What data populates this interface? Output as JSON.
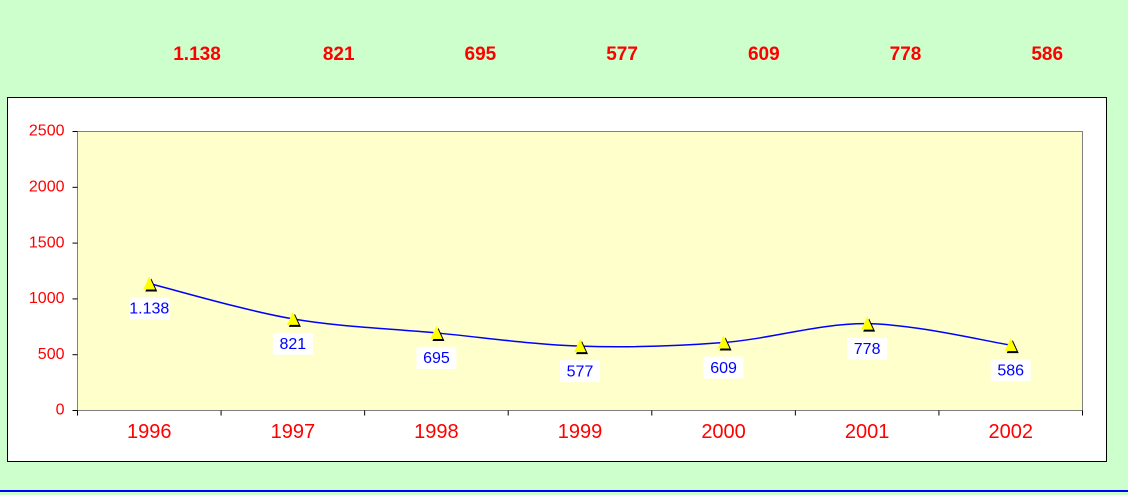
{
  "chart_data": {
    "type": "line",
    "categories": [
      "1996",
      "1997",
      "1998",
      "1999",
      "2000",
      "2001",
      "2002"
    ],
    "values": [
      1138,
      821,
      695,
      577,
      609,
      778,
      586
    ],
    "value_labels": [
      "1.138",
      "821",
      "695",
      "577",
      "609",
      "778",
      "586"
    ],
    "color": "#0000ff",
    "marker_color": "#ffff00",
    "label_color": "#ff0000",
    "ylim": [
      0,
      2500
    ],
    "yticks": [
      0,
      500,
      1000,
      1500,
      2000,
      2500
    ]
  }
}
